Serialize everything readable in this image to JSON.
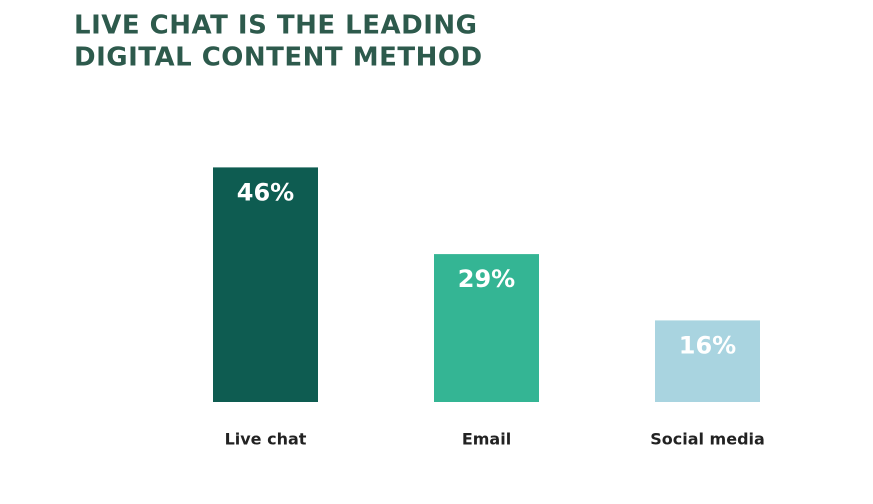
{
  "chart_data": {
    "type": "bar",
    "title": [
      "LIVE CHAT IS THE LEADING",
      "DIGITAL CONTENT METHOD"
    ],
    "categories": [
      "Live chat",
      "Email",
      "Social media"
    ],
    "values": [
      46,
      29,
      16
    ],
    "value_labels": [
      "46%",
      "29%",
      "16%"
    ],
    "colors": [
      "#0e5c51",
      "#34b594",
      "#a9d4e0"
    ]
  }
}
